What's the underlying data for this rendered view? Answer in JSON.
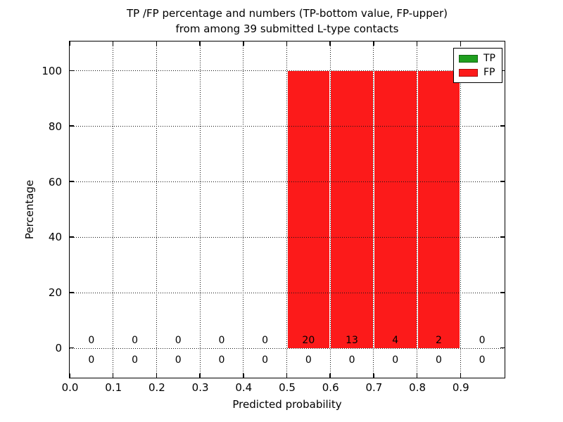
{
  "chart_data": {
    "type": "bar",
    "title": "TP /FP percentage and numbers (TP-bottom value, FP-upper) from among 39 submitted L-type contacts",
    "title_lines": [
      "TP /FP percentage and numbers (TP-bottom value, FP-upper)",
      "from among 39 submitted L-type contacts"
    ],
    "xlabel": "Predicted probability",
    "ylabel": "Percentage",
    "xlim": [
      0.0,
      1.0
    ],
    "ylim": [
      -10.5,
      110.5
    ],
    "x_ticks": [
      0.0,
      0.1,
      0.2,
      0.3,
      0.4,
      0.5,
      0.6,
      0.7,
      0.8,
      0.9
    ],
    "y_ticks": [
      0,
      20,
      40,
      60,
      80,
      100
    ],
    "grid": "dotted",
    "bin_width": 0.1,
    "bin_edges": [
      0.0,
      0.1,
      0.2,
      0.3,
      0.4,
      0.5,
      0.6,
      0.7,
      0.8,
      0.9,
      1.0
    ],
    "bin_centers": [
      0.05,
      0.15,
      0.25,
      0.35,
      0.45,
      0.55,
      0.65,
      0.75,
      0.85,
      0.95
    ],
    "series": [
      {
        "name": "TP",
        "color": "#1f9f1f",
        "percent": [
          0,
          0,
          0,
          0,
          0,
          0,
          0,
          0,
          0,
          0
        ],
        "counts": [
          0,
          0,
          0,
          0,
          0,
          0,
          0,
          0,
          0,
          0
        ]
      },
      {
        "name": "FP",
        "color": "#fc1a1a",
        "percent": [
          0,
          0,
          0,
          0,
          0,
          100,
          100,
          100,
          100,
          0
        ],
        "counts": [
          0,
          0,
          0,
          0,
          0,
          20,
          13,
          4,
          2,
          0
        ]
      }
    ],
    "count_annotations": {
      "upper_row_series": "FP",
      "upper_row": [
        "0",
        "0",
        "0",
        "0",
        "0",
        "20",
        "13",
        "4",
        "2",
        "0"
      ],
      "lower_row_series": "TP",
      "lower_row": [
        "0",
        "0",
        "0",
        "0",
        "0",
        "0",
        "0",
        "0",
        "0",
        "0"
      ]
    },
    "legend": {
      "position": "upper right",
      "items": [
        {
          "label": "TP",
          "color": "#1f9f1f"
        },
        {
          "label": "FP",
          "color": "#fc1a1a"
        }
      ]
    }
  }
}
